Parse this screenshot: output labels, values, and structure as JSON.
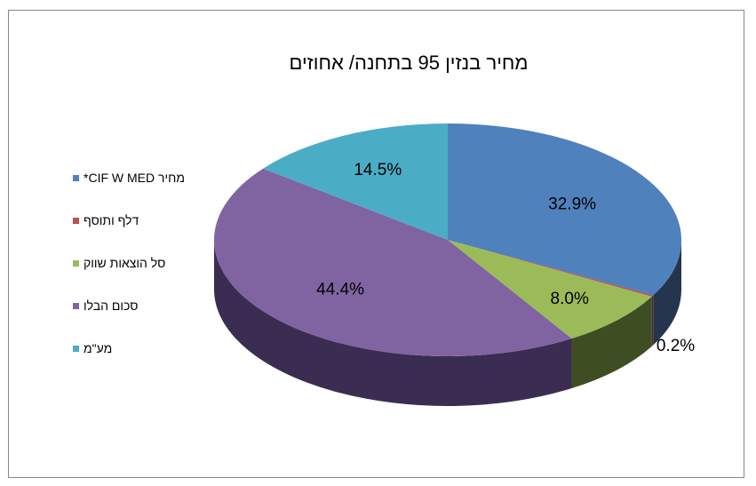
{
  "chart_data": {
    "type": "pie",
    "title": "מחיר בנזין 95 בתחנה/ אחוזים",
    "categories": [
      "מחיר CIF W MED*",
      "דלף ותוסף",
      "סל הוצאות שווק",
      "סכום הבלו",
      "מע\"מ"
    ],
    "values": [
      32.9,
      0.2,
      8.0,
      44.4,
      14.5
    ],
    "value_labels": [
      "32.9%",
      "0.2%",
      "8.0%",
      "44.4%",
      "14.5%"
    ],
    "colors": [
      "#4f81bd",
      "#c0504d",
      "#9bbb59",
      "#8064a2",
      "#4bacc6"
    ],
    "side_colors": [
      "#24354d",
      "#5a2524",
      "#3f4d23",
      "#3b2d52",
      "#1f5566"
    ],
    "legend_position": "left",
    "style": "3d"
  }
}
